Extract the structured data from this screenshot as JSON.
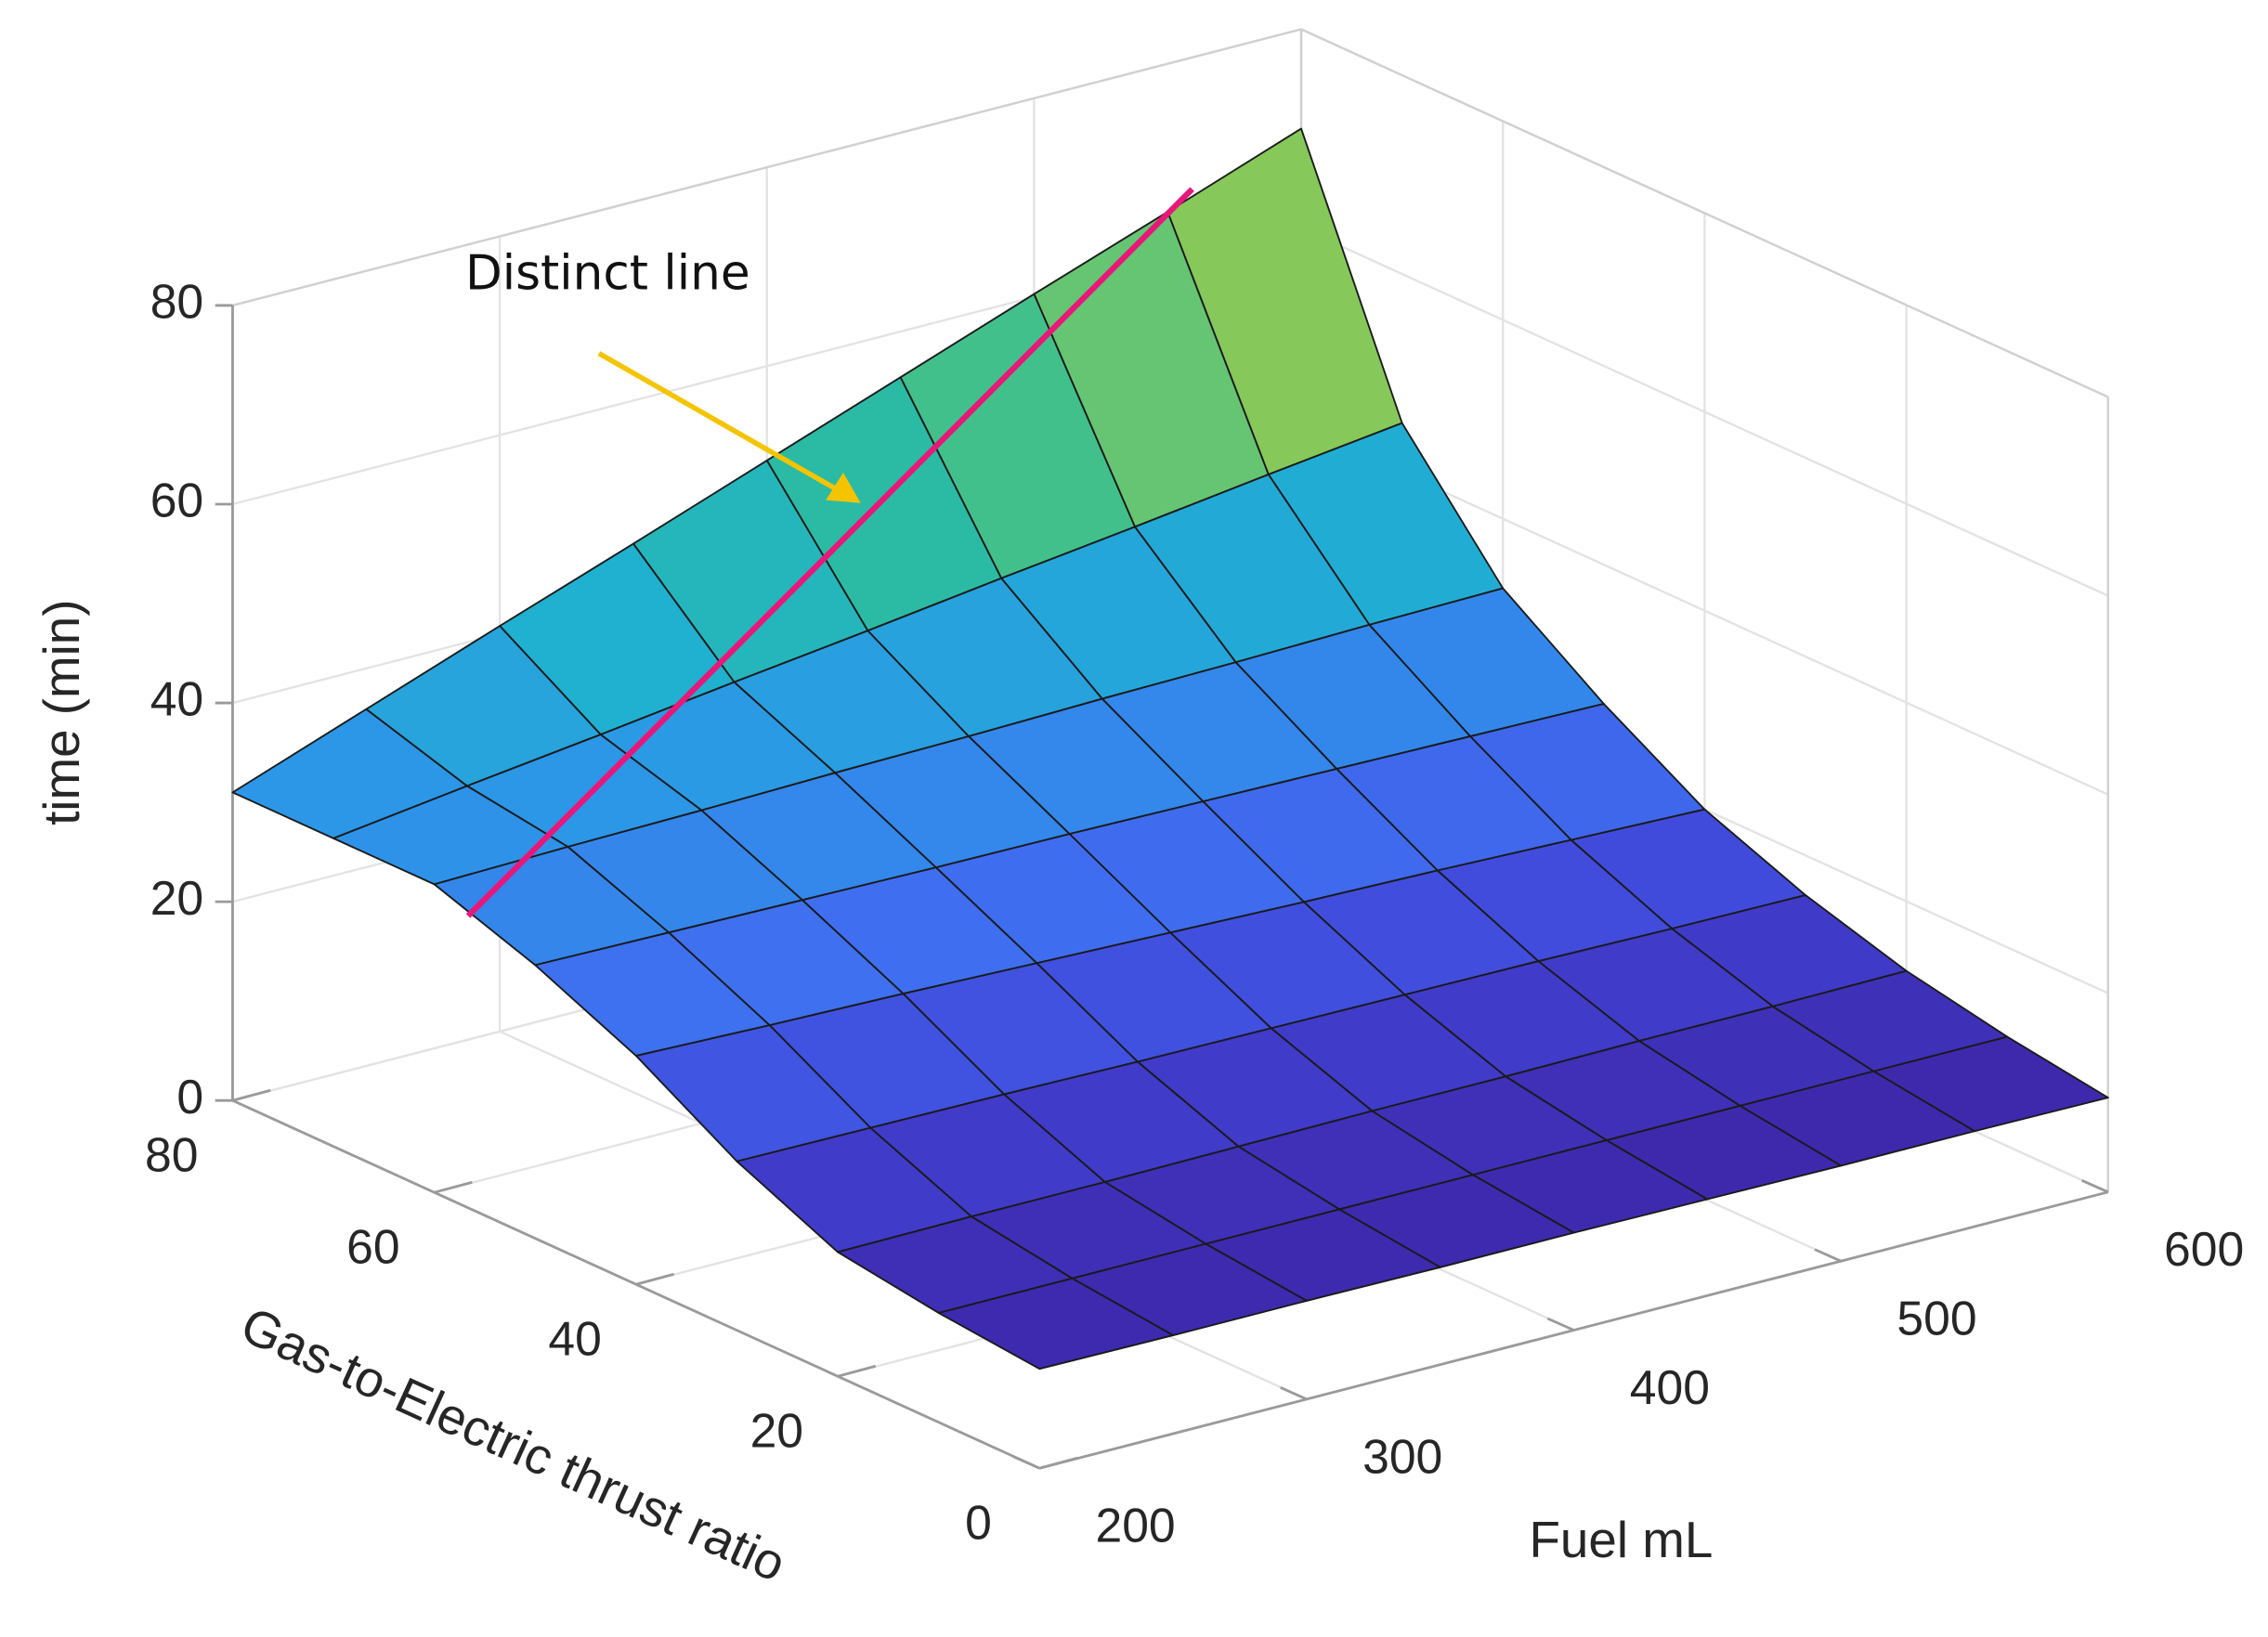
{
  "chart_data": {
    "type": "surface",
    "xlabel": "Fuel mL",
    "ylabel": "Gas-to-Electric thrust ratio",
    "zlabel": "time (min)",
    "annotation": "Distinct line",
    "x": [
      200,
      250,
      300,
      350,
      400,
      450,
      500,
      550,
      600
    ],
    "y": [
      0,
      10,
      20,
      30,
      40,
      50,
      60,
      70,
      80
    ],
    "z": [
      [
        10.0,
        9.9,
        9.9,
        9.8,
        9.8,
        9.7,
        9.6,
        9.6,
        9.5
      ],
      [
        11,
        11,
        11,
        11,
        11,
        11,
        11,
        11,
        11
      ],
      [
        12.5,
        12.6,
        12.6,
        12.7,
        12.8,
        12.8,
        12.9,
        12.9,
        13.0
      ],
      [
        17.0,
        16.9,
        16.8,
        16.6,
        16.5,
        16.4,
        16.3,
        16.1,
        16.0
      ],
      [
        23.0,
        22.6,
        22.3,
        21.9,
        21.5,
        21.1,
        20.8,
        20.4,
        20.0
      ],
      [
        27.5,
        27.3,
        27.1,
        26.9,
        26.8,
        26.6,
        26.4,
        26.2,
        26.0
      ],
      [
        31.0,
        31.3,
        31.5,
        31.8,
        32.0,
        32.3,
        32.5,
        32.8,
        33.0
      ],
      [
        31.0,
        32.8,
        34.5,
        36.3,
        38.0,
        39.8,
        41.5,
        43.3,
        45.0
      ],
      [
        31.0,
        35.9,
        40.8,
        45.6,
        50.5,
        55.4,
        60.3,
        65.1,
        70.0
      ]
    ],
    "xlim": [
      200,
      600
    ],
    "xticks": [
      200,
      300,
      400,
      500,
      600
    ],
    "ylim": [
      0,
      80
    ],
    "yticks": [
      0,
      20,
      40,
      60,
      80
    ],
    "zlim": [
      0,
      80
    ],
    "zticks": [
      0,
      20,
      40,
      60,
      80
    ],
    "grid": true,
    "colormap": [
      "#3e26a8",
      "#4145d8",
      "#3f6ff0",
      "#2d95e8",
      "#1fb2cf",
      "#2ebd9a",
      "#7dc960",
      "#c6c034",
      "#fbbb3b"
    ],
    "edge_color": "#1a1a1a"
  }
}
